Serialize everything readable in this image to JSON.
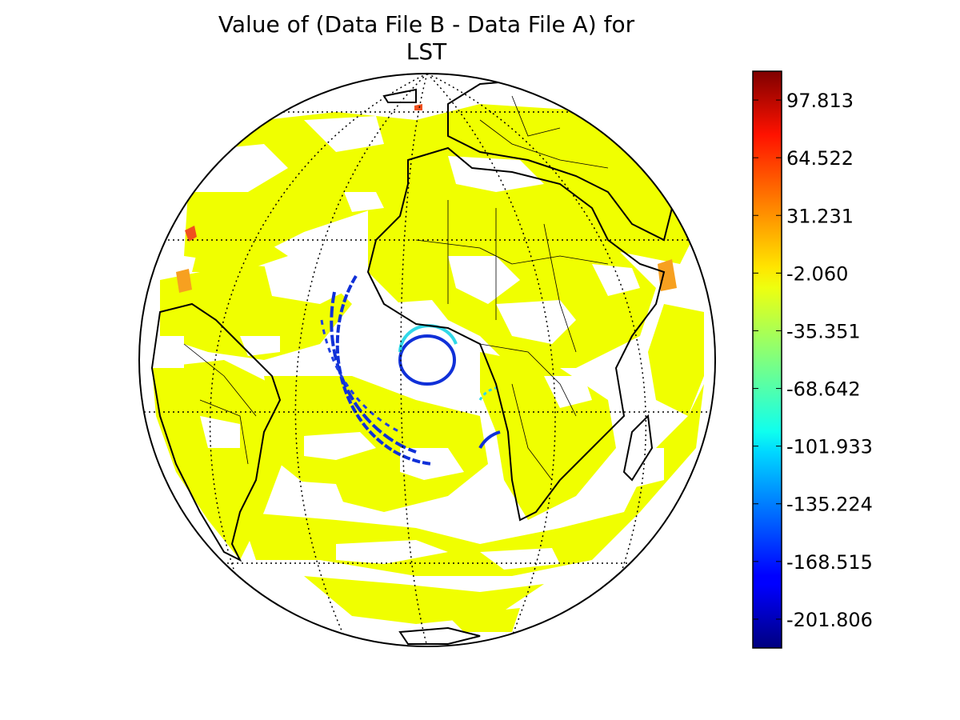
{
  "figure": {
    "title_line1": "Value of (Data File B - Data File A) for",
    "title_line2": "LST"
  },
  "colorbar": {
    "colormap": "jet",
    "min": -218.452,
    "max": 114.459,
    "tick_labels": [
      "97.813",
      "64.522",
      "31.231",
      "-2.060",
      "-35.351",
      "-68.642",
      "-101.933",
      "-135.224",
      "-168.515",
      "-201.806"
    ],
    "tick_values": [
      97.813,
      64.522,
      31.231,
      -2.06,
      -35.351,
      -68.642,
      -101.933,
      -135.224,
      -168.515,
      -201.806
    ]
  },
  "map": {
    "projection": "orthographic",
    "center_lon": 0,
    "center_lat": 0,
    "gridlines": "dotted",
    "dominant_value_color": "#f0ff00",
    "high_anomaly_color": "#f0501e",
    "low_anomaly_color": "#1030d8",
    "cyan_anomaly_color": "#30d8e8"
  }
}
